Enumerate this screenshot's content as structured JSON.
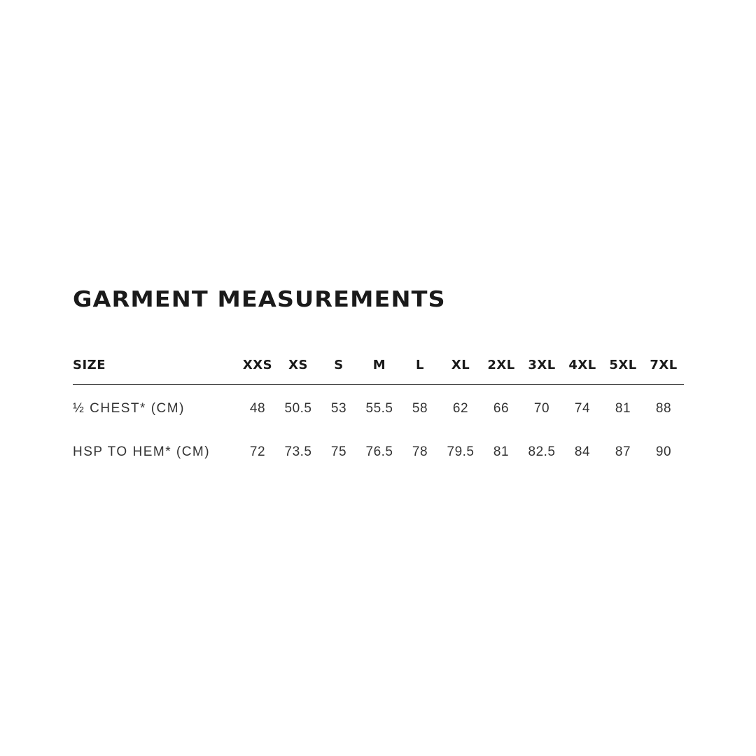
{
  "title": "GARMENT MEASUREMENTS",
  "table": {
    "header_label": "SIZE",
    "sizes": [
      "XXS",
      "XS",
      "S",
      "M",
      "L",
      "XL",
      "2XL",
      "3XL",
      "4XL",
      "5XL",
      "7XL"
    ],
    "rows": [
      {
        "label": "½ CHEST* (CM)",
        "values": [
          "48",
          "50.5",
          "53",
          "55.5",
          "58",
          "62",
          "66",
          "70",
          "74",
          "81",
          "88"
        ]
      },
      {
        "label": "HSP TO HEM* (CM)",
        "values": [
          "72",
          "73.5",
          "75",
          "76.5",
          "78",
          "79.5",
          "81",
          "82.5",
          "84",
          "87",
          "90"
        ]
      }
    ]
  }
}
